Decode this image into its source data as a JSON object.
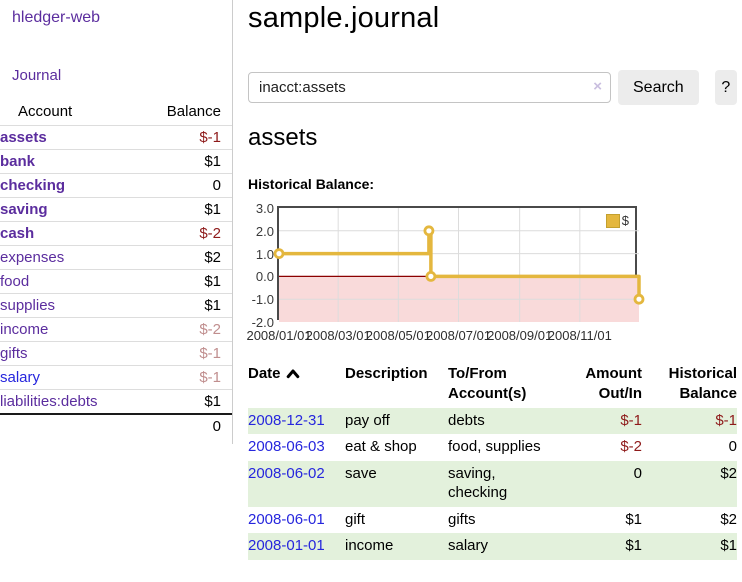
{
  "app": {
    "brand": "hledger-web",
    "nav_journal": "Journal"
  },
  "sidebar": {
    "header": {
      "account": "Account",
      "balance": "Balance"
    },
    "accounts": [
      {
        "name": "assets",
        "balance": "$-1"
      },
      {
        "name": "bank",
        "balance": "$1"
      },
      {
        "name": "checking",
        "balance": "0"
      },
      {
        "name": "saving",
        "balance": "$1"
      },
      {
        "name": "cash",
        "balance": "$-2"
      },
      {
        "name": "expenses",
        "balance": "$2"
      },
      {
        "name": "food",
        "balance": "$1"
      },
      {
        "name": "supplies",
        "balance": "$1"
      },
      {
        "name": "income",
        "balance": "$-2"
      },
      {
        "name": "gifts",
        "balance": "$-1"
      },
      {
        "name": "salary",
        "balance": "$-1"
      },
      {
        "name": "liabilities:debts",
        "balance": "$1"
      }
    ],
    "total": "0"
  },
  "main": {
    "title": "sample.journal",
    "search": {
      "query": "inacct:assets",
      "clear_icon": "×",
      "button": "Search",
      "help": "?"
    },
    "heading": "assets",
    "chart_label": "Historical Balance:"
  },
  "chart_data": {
    "type": "line",
    "step": true,
    "title": "Historical Balance",
    "series": [
      {
        "name": "$",
        "points": [
          [
            "2008-01-01",
            1
          ],
          [
            "2008-06-01",
            2
          ],
          [
            "2008-06-03",
            0
          ],
          [
            "2008-12-31",
            -1
          ]
        ]
      }
    ],
    "x_domain": [
      "2008-01-01",
      "2008-12-31"
    ],
    "x_ticks": [
      "2008/01/01",
      "2008/03/01",
      "2008/05/01",
      "2008/07/01",
      "2008/09/01",
      "2008/11/01"
    ],
    "y_ticks": [
      3,
      2,
      1,
      0,
      -1,
      -2
    ],
    "y_tick_labels": [
      "3.0",
      "2.0",
      "1.0",
      "0.0",
      "-1.0",
      "-2.0"
    ],
    "ylim": [
      -2,
      3
    ],
    "grid": true,
    "legend_position": "top-right",
    "colors": {
      "line": "#e4b73e",
      "marker_fill": "#ffffff",
      "negative_region": "#f9dada",
      "zero_line": "#8b0000",
      "grid": "#dcdcdc",
      "plot_border": "#4a4a4a"
    }
  },
  "table": {
    "headers": {
      "date": "Date",
      "description": "Description",
      "tofrom": "To/From\nAccount(s)",
      "amount": "Amount\nOut/In",
      "balance": "Historical\nBalance"
    },
    "rows": [
      {
        "date": "2008-12-31",
        "description": "pay off",
        "accounts": "debts",
        "amount": "$-1",
        "balance": "$-1"
      },
      {
        "date": "2008-06-03",
        "description": "eat & shop",
        "accounts": "food, supplies",
        "amount": "$-2",
        "balance": "0"
      },
      {
        "date": "2008-06-02",
        "description": "save",
        "accounts": "saving,\nchecking",
        "amount": "0",
        "balance": "$2"
      },
      {
        "date": "2008-06-01",
        "description": "gift",
        "accounts": "gifts",
        "amount": "$1",
        "balance": "$2"
      },
      {
        "date": "2008-01-01",
        "description": "income",
        "accounts": "salary",
        "amount": "$1",
        "balance": "$1"
      }
    ]
  },
  "colors": {
    "link_purple": "#5b2d9e",
    "link_blue": "#2626dd",
    "negative_strong": "#8e1a1a",
    "negative_faded": "#c08e8e",
    "row_stripe_green": "#e3f1dc",
    "button_bg": "#ececec"
  }
}
